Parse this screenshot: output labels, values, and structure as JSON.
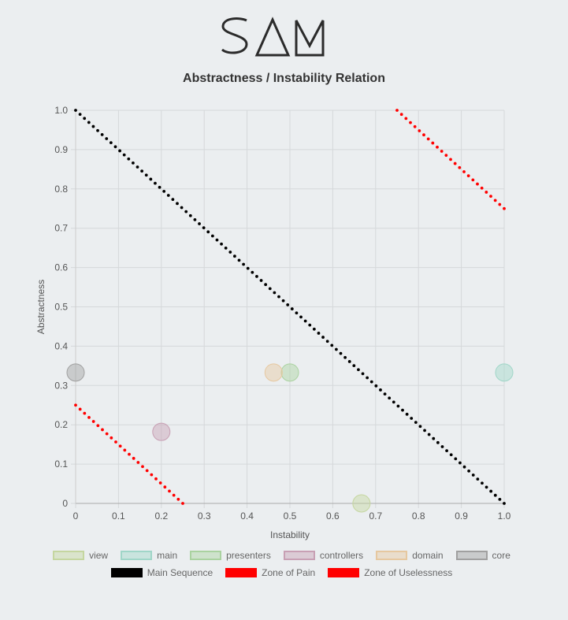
{
  "logo": {
    "text": "SAM",
    "icon": "sam-logo-icon"
  },
  "chart_data": {
    "type": "scatter",
    "title": "Abstractness / Instability Relation",
    "xlabel": "Instability",
    "ylabel": "Abstractness",
    "xlim": [
      0,
      1
    ],
    "ylim": [
      0,
      1
    ],
    "x_ticks": [
      "0",
      "0.1",
      "0.2",
      "0.3",
      "0.4",
      "0.5",
      "0.6",
      "0.7",
      "0.8",
      "0.9",
      "1.0"
    ],
    "y_ticks": [
      "0",
      "0.1",
      "0.2",
      "0.3",
      "0.4",
      "0.5",
      "0.6",
      "0.7",
      "0.8",
      "0.9",
      "1.0"
    ],
    "grid": true,
    "legend_placement": "bottom",
    "points": [
      {
        "name": "view",
        "x": 0.667,
        "y": 0.0,
        "fill": "rgba(197,214,160,0.45)",
        "border": "#c5d6a0"
      },
      {
        "name": "main",
        "x": 1.0,
        "y": 0.333,
        "fill": "rgba(160,214,200,0.45)",
        "border": "#a0d6c8"
      },
      {
        "name": "presenters",
        "x": 0.5,
        "y": 0.333,
        "fill": "rgba(170,210,160,0.45)",
        "border": "#aad2a0"
      },
      {
        "name": "controllers",
        "x": 0.2,
        "y": 0.182,
        "fill": "rgba(200,160,180,0.45)",
        "border": "#c8a0b4"
      },
      {
        "name": "domain",
        "x": 0.462,
        "y": 0.333,
        "fill": "rgba(230,200,160,0.45)",
        "border": "#e6c8a0"
      },
      {
        "name": "core",
        "x": 0.0,
        "y": 0.333,
        "fill": "rgba(160,160,160,0.45)",
        "border": "#a0a0a0"
      }
    ],
    "lines": [
      {
        "name": "Main Sequence",
        "color": "#000000",
        "from": [
          0,
          1
        ],
        "to": [
          1,
          0
        ]
      },
      {
        "name": "Zone of Pain",
        "color": "#ff0000",
        "from": [
          0,
          0.25
        ],
        "to": [
          0.25,
          0
        ]
      },
      {
        "name": "Zone of Uselessness",
        "color": "#ff0000",
        "from": [
          0.75,
          1
        ],
        "to": [
          1,
          0.75
        ]
      }
    ]
  }
}
